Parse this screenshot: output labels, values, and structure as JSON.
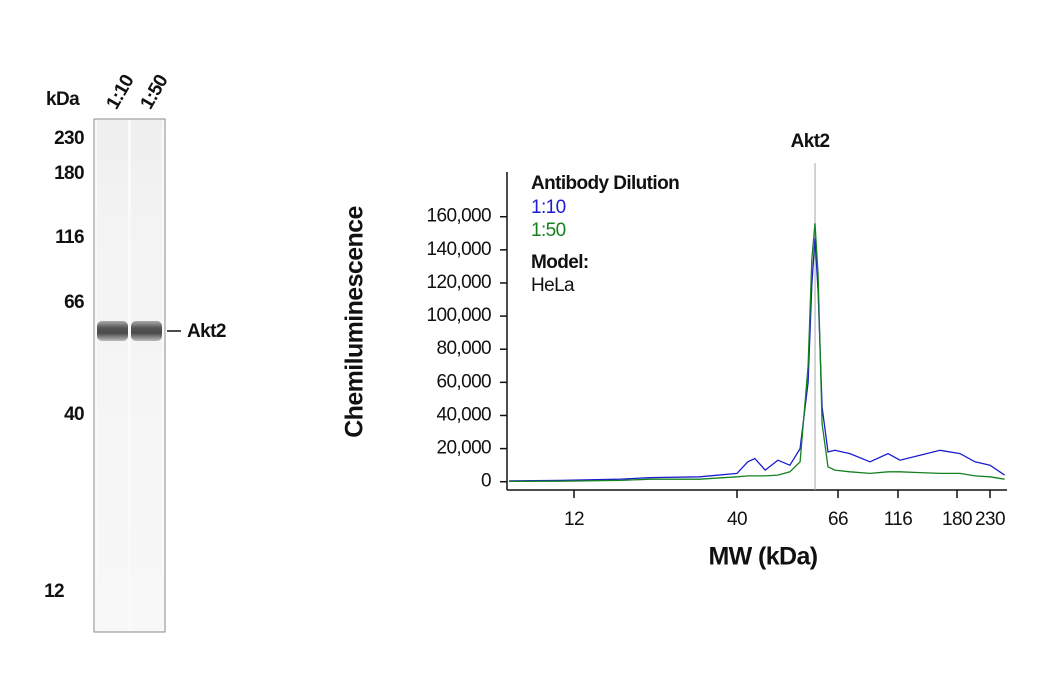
{
  "blot": {
    "unit": "kDa",
    "lanes": [
      "1:10",
      "1:50"
    ],
    "markers": [
      230,
      180,
      116,
      66,
      40,
      12
    ],
    "band_label": "Akt2"
  },
  "chart_data": {
    "type": "line",
    "title": "Akt2",
    "xlabel": "MW (kDa)",
    "ylabel": "Chemiluminescence",
    "xscale": "log",
    "legend_title": "Antibody Dilution",
    "model_label": "Model:",
    "model": "HeLa",
    "x": [
      7.4,
      10.8,
      16.9,
      21.0,
      30.4,
      40,
      42.2,
      43.7,
      46.0,
      49.0,
      52.0,
      54.7,
      56.9,
      58.0,
      58.9,
      59.8,
      61.0,
      62.8,
      65.0,
      73.8,
      89.2,
      105.6,
      117.7,
      136.7,
      158.7,
      184.0,
      205.8,
      230,
      257.2
    ],
    "series": [
      {
        "name": "1:10",
        "color": "#1c1cd0",
        "values": [
          500,
          800,
          1500,
          2500,
          3000,
          5000,
          12000,
          14000,
          7000,
          13000,
          10000,
          20000,
          60000,
          120000,
          147000,
          115000,
          45000,
          18000,
          19000,
          17000,
          12000,
          17000,
          13000,
          16000,
          19000,
          17000,
          12000,
          10000,
          4000
        ]
      },
      {
        "name": "1:50",
        "color": "#15801f",
        "values": [
          200,
          300,
          800,
          1500,
          1500,
          3000,
          3500,
          3500,
          3500,
          4000,
          6000,
          12000,
          70000,
          135000,
          156000,
          125000,
          35000,
          9000,
          7000,
          6000,
          5000,
          6000,
          6000,
          5500,
          5000,
          5000,
          3500,
          3000,
          1500
        ]
      }
    ],
    "xlim": [
      7.4,
      262
    ],
    "xticks": [
      12,
      40,
      66,
      116,
      180,
      230
    ],
    "ylim": [
      -5000,
      187000
    ],
    "yticks": [
      0,
      {
        "value": 20000,
        "label": "20,000"
      },
      {
        "value": 40000,
        "label": "40,000"
      },
      {
        "value": 60000,
        "label": "60,000"
      },
      {
        "value": 80000,
        "label": "80,000"
      },
      {
        "value": 100000,
        "label": "100,000"
      },
      {
        "value": 120000,
        "label": "120,000"
      },
      {
        "value": 140000,
        "label": "140,000"
      },
      {
        "value": 160000,
        "label": "160,000"
      }
    ],
    "marker_x": 58.9,
    "grid": false
  }
}
